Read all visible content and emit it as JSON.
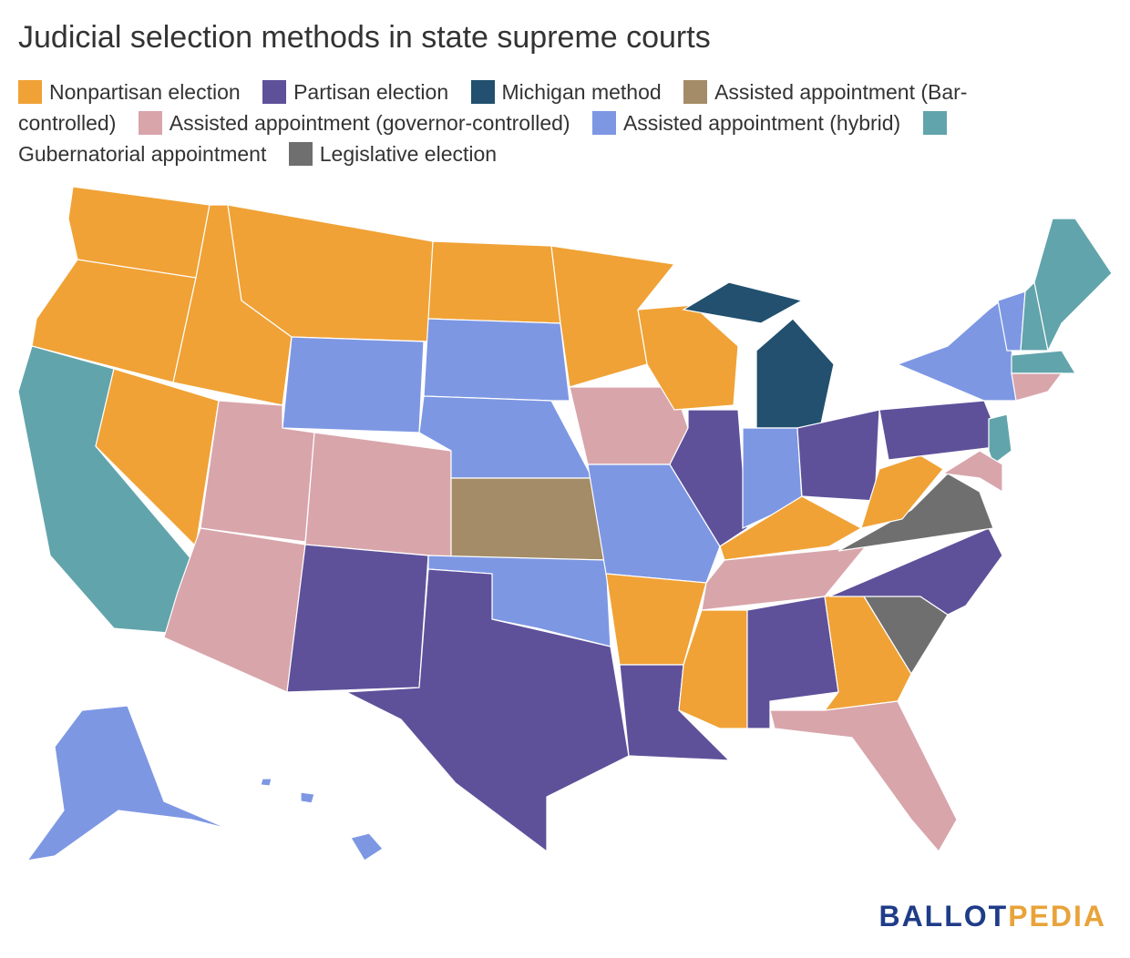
{
  "title": "Judicial selection methods in state supreme courts",
  "legend": [
    {
      "label": "Nonpartisan election",
      "color": "#f0a236"
    },
    {
      "label": "Partisan election",
      "color": "#5e519a"
    },
    {
      "label": "Michigan method",
      "color": "#22506e"
    },
    {
      "label": "Assisted appointment (Bar-controlled)",
      "color": "#a38c67"
    },
    {
      "label": "Assisted appointment (governor-controlled)",
      "color": "#d8a5ab"
    },
    {
      "label": "Assisted appointment (hybrid)",
      "color": "#7d97e3"
    },
    {
      "label": "Gubernatorial appointment",
      "color": "#62a4ab"
    },
    {
      "label": "Legislative election",
      "color": "#6f6f6f"
    }
  ],
  "logo": {
    "left": "BALLOT",
    "right": "PEDIA"
  }
}
